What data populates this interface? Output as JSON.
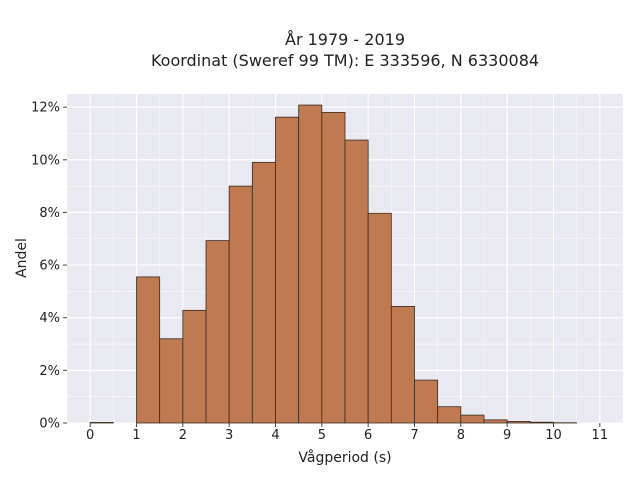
{
  "chart_data": {
    "type": "bar",
    "title_line1": "År 1979 - 2019",
    "title_line2": "Koordinat (Sweref 99 TM): E 333596, N 6330084",
    "xlabel": "Vågperiod (s)",
    "ylabel": "Andel",
    "xlim": [
      -0.5,
      11.5
    ],
    "ylim": [
      0,
      12.5
    ],
    "bin_width": 0.5,
    "x_ticks": [
      0,
      1,
      2,
      3,
      4,
      5,
      6,
      7,
      8,
      9,
      10,
      11
    ],
    "x_tick_labels": [
      "0",
      "1",
      "2",
      "3",
      "4",
      "5",
      "6",
      "7",
      "8",
      "9",
      "10",
      "11"
    ],
    "y_ticks": [
      0,
      2,
      4,
      6,
      8,
      10,
      12
    ],
    "y_tick_labels": [
      "0%",
      "2%",
      "4%",
      "6%",
      "8%",
      "10%",
      "12%"
    ],
    "grid": true,
    "legend": "none",
    "colors": {
      "bar_fill": "#c07a52",
      "bar_edge": "#3a2a20",
      "plot_background": "#e9e9f1",
      "grid": "#ffffff"
    },
    "bins": [
      {
        "start": 0.0,
        "value": 0.02
      },
      {
        "start": 0.5,
        "value": 0.0
      },
      {
        "start": 1.0,
        "value": 5.55
      },
      {
        "start": 1.5,
        "value": 3.2
      },
      {
        "start": 2.0,
        "value": 4.28
      },
      {
        "start": 2.5,
        "value": 6.93
      },
      {
        "start": 3.0,
        "value": 9.0
      },
      {
        "start": 3.5,
        "value": 9.9
      },
      {
        "start": 4.0,
        "value": 11.62
      },
      {
        "start": 4.5,
        "value": 12.08
      },
      {
        "start": 5.0,
        "value": 11.8
      },
      {
        "start": 5.5,
        "value": 10.75
      },
      {
        "start": 6.0,
        "value": 7.97
      },
      {
        "start": 6.5,
        "value": 4.43
      },
      {
        "start": 7.0,
        "value": 1.63
      },
      {
        "start": 7.5,
        "value": 0.62
      },
      {
        "start": 8.0,
        "value": 0.3
      },
      {
        "start": 8.5,
        "value": 0.12
      },
      {
        "start": 9.0,
        "value": 0.06
      },
      {
        "start": 9.5,
        "value": 0.03
      },
      {
        "start": 10.0,
        "value": 0.01
      }
    ]
  }
}
